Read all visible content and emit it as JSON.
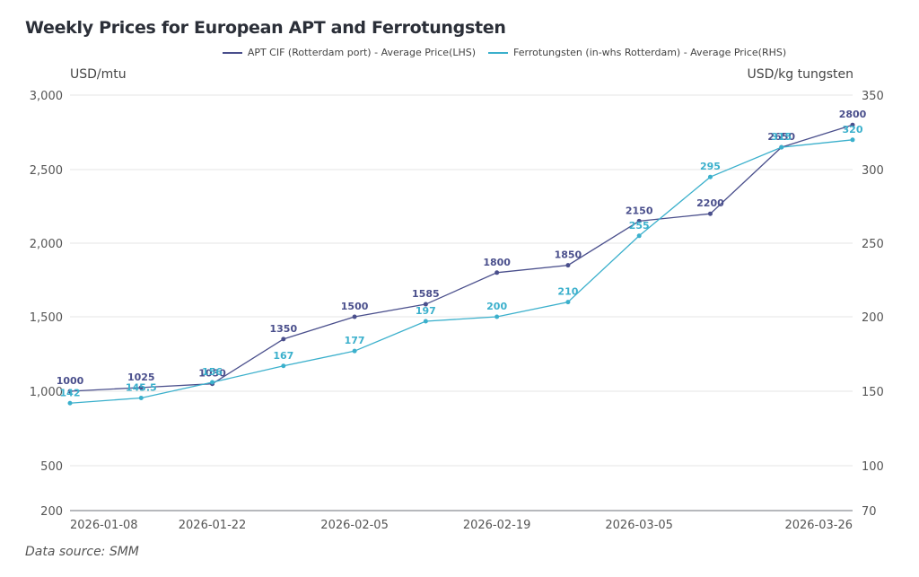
{
  "chart_data": {
    "type": "line",
    "title": "Weekly Prices for European APT and Ferrotungsten",
    "x": [
      "2026-01-08",
      "2026-01-15",
      "2026-01-22",
      "2026-01-29",
      "2026-02-05",
      "2026-02-12",
      "2026-02-19",
      "2026-02-26",
      "2026-03-05",
      "2026-03-12",
      "2026-03-19",
      "2026-03-26"
    ],
    "x_tick_labels": [
      "2026-01-08",
      "2026-01-22",
      "2026-02-05",
      "2026-02-19",
      "2026-03-05",
      "2026-03-26"
    ],
    "series": [
      {
        "name": "APT CIF (Rotterdam port) - Average Price(LHS)",
        "axis": "left",
        "color": "#4a4f8c",
        "values": [
          1000,
          1025,
          1050,
          1350,
          1500,
          1585,
          1800,
          1850,
          2150,
          2200,
          2650,
          2800
        ]
      },
      {
        "name": "Ferrotungsten (in-whs Rotterdam) - Average Price(RHS)",
        "axis": "right",
        "color": "#3bb0cc",
        "values": [
          142,
          145.5,
          156,
          167,
          177,
          197,
          200,
          210,
          255,
          295,
          315,
          320
        ]
      }
    ],
    "ylabel_left": "USD/mtu",
    "ylabel_right": "USD/kg tungsten",
    "y_left_ticks": [
      200,
      500,
      1000,
      1500,
      2000,
      2500,
      3000
    ],
    "y_left_tick_labels": [
      "200",
      "500",
      "1,000",
      "1,500",
      "2,000",
      "2,500",
      "3,000"
    ],
    "y_right_ticks": [
      70,
      100,
      150,
      200,
      250,
      300,
      350
    ],
    "y_right_tick_labels": [
      "70",
      "100",
      "150",
      "200",
      "250",
      "300",
      "350"
    ],
    "ylim_left": [
      200,
      3000
    ],
    "ylim_right": [
      70,
      350
    ],
    "grid": true,
    "legend_position": "top-center"
  },
  "source": "Data source:  SMM"
}
